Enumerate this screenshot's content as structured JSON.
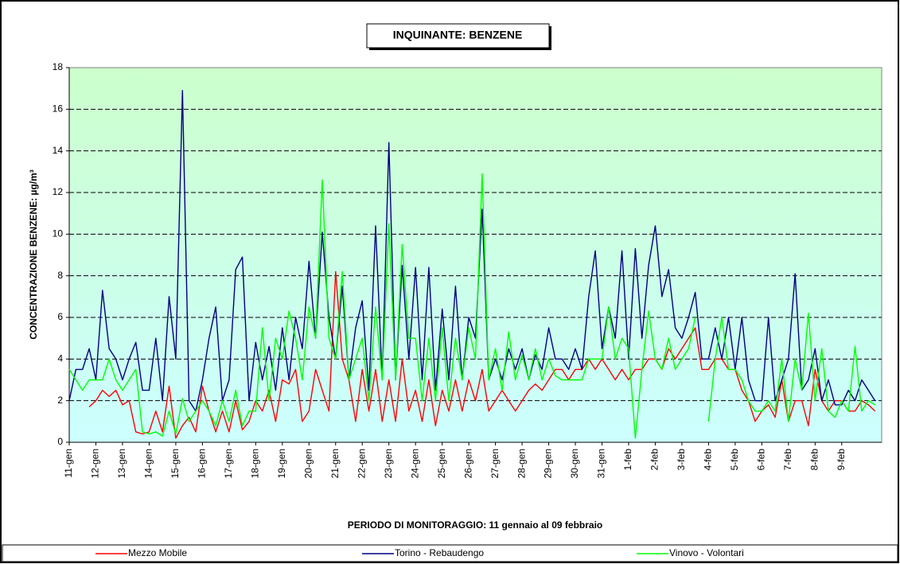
{
  "chart_data": {
    "type": "line",
    "title": "INQUINANTE: BENZENE",
    "y_label": "CONCENTRAZIONE BENZENE:  µg/m³",
    "x_label": "PERIODO DI MONITORAGGIO: 11 gennaio al 09 febbraio",
    "ylim": [
      0,
      18
    ],
    "yticks": [
      0,
      2,
      4,
      6,
      8,
      10,
      12,
      14,
      16,
      18
    ],
    "grid": true,
    "categories": [
      "11-gen",
      null,
      null,
      null,
      "12-gen",
      null,
      null,
      null,
      "13-gen",
      null,
      null,
      null,
      "14-gen",
      null,
      null,
      null,
      "15-gen",
      null,
      null,
      null,
      "16-gen",
      null,
      null,
      null,
      "17-gen",
      null,
      null,
      null,
      "18-gen",
      null,
      null,
      null,
      "19-gen",
      null,
      null,
      null,
      "20-gen",
      null,
      null,
      null,
      "21-gen",
      null,
      null,
      null,
      "22-gen",
      null,
      null,
      null,
      "23-gen",
      null,
      null,
      null,
      "24-gen",
      null,
      null,
      null,
      "25-gen",
      null,
      null,
      null,
      "26-gen",
      null,
      null,
      null,
      "27-gen",
      null,
      null,
      null,
      "28-gen",
      null,
      null,
      null,
      "29-gen",
      null,
      null,
      null,
      "30-gen",
      null,
      null,
      null,
      "31-gen",
      null,
      null,
      null,
      "1-feb",
      null,
      null,
      null,
      "2-feb",
      null,
      null,
      null,
      "3-feb",
      null,
      null,
      null,
      "4-feb",
      null,
      null,
      null,
      "5-feb",
      null,
      null,
      null,
      "6-feb",
      null,
      null,
      null,
      "7-feb",
      null,
      null,
      null,
      "8-feb",
      null,
      null,
      null,
      "9-feb",
      null,
      null,
      null,
      null,
      null
    ],
    "series": [
      {
        "name": "Mezzo Mobile",
        "color": "#ff0000",
        "values": [
          null,
          null,
          null,
          1.7,
          2,
          2.5,
          2.2,
          2.5,
          1.8,
          2,
          0.5,
          0.4,
          0.5,
          1.5,
          0.5,
          2.7,
          0.2,
          0.8,
          1.2,
          0.5,
          2.7,
          1.5,
          0.5,
          1.5,
          0.5,
          2,
          0.6,
          1,
          2,
          1.5,
          2.5,
          1,
          3,
          2.8,
          3.5,
          1,
          1.5,
          3.5,
          2.5,
          1.5,
          8.2,
          4,
          3,
          1,
          3.5,
          1.5,
          3.5,
          1,
          3,
          1,
          4,
          1.5,
          2.5,
          1,
          3,
          0.8,
          2.5,
          1.5,
          3,
          1.5,
          3,
          2,
          3.5,
          1.5,
          2,
          2.5,
          2,
          1.5,
          2,
          2.5,
          2.8,
          2.5,
          3,
          3.5,
          3.5,
          3,
          3.5,
          3.5,
          4,
          3.5,
          4,
          3.5,
          3,
          3.5,
          3,
          3.5,
          3.5,
          4,
          4,
          3.5,
          4.5,
          4,
          4.5,
          5,
          5.5,
          3.5,
          3.5,
          4,
          4,
          3.5,
          3.5,
          2.5,
          2,
          1,
          1.5,
          1.8,
          1.2,
          3,
          1,
          2,
          2,
          0.8,
          3.5,
          2,
          1.5,
          2,
          2,
          1.5,
          1.5,
          2,
          1.8,
          1.5
        ]
      },
      {
        "name": "Torino - Rebaudengo",
        "color": "#000080",
        "values": [
          2,
          3.5,
          3.5,
          4.5,
          3,
          7.3,
          4.5,
          4,
          3,
          4,
          4.8,
          2.5,
          2.5,
          5,
          2,
          7,
          4,
          16.9,
          2,
          1.5,
          3,
          5,
          6.5,
          2,
          3,
          8.3,
          8.9,
          2,
          4.8,
          3,
          4.6,
          2.5,
          5.5,
          3,
          6,
          4.5,
          8.7,
          5,
          10.1,
          6,
          4,
          7.5,
          3,
          5.5,
          6.8,
          2.5,
          10.4,
          3,
          14.4,
          3,
          8.5,
          4,
          8.4,
          3,
          8.4,
          2.5,
          6.4,
          3,
          7.5,
          3,
          6,
          5,
          11.2,
          3,
          4,
          3,
          4.5,
          3.5,
          4.5,
          3,
          4.2,
          3.5,
          5.5,
          4,
          4,
          3.5,
          4.5,
          3.5,
          7,
          9.2,
          4.5,
          6.5,
          5,
          9.2,
          4,
          9.3,
          5,
          8.5,
          10.4,
          7,
          8.3,
          5.5,
          5,
          6,
          7.2,
          4,
          4,
          5.5,
          4,
          6,
          3.5,
          6,
          3,
          2,
          2,
          6,
          2,
          3,
          4,
          8.1,
          2.5,
          3,
          4.5,
          2,
          3,
          1.8,
          1.8,
          2.5,
          2,
          3,
          2.5,
          2
        ]
      },
      {
        "name": "Vinovo - Volontari",
        "color": "#00ff00",
        "values": [
          3.5,
          3,
          2.5,
          3,
          3,
          3,
          4,
          3,
          2.5,
          3,
          3.5,
          0.5,
          0.4,
          0.5,
          0.3,
          1.5,
          0.4,
          2.1,
          1,
          1.5,
          2,
          1.5,
          0.8,
          2,
          1,
          2.5,
          0.8,
          1.5,
          1.5,
          5.5,
          2,
          5,
          4,
          6.3,
          5,
          3,
          6.5,
          5,
          12.6,
          5,
          4,
          8.2,
          3,
          4,
          5,
          2,
          6.5,
          3,
          10.5,
          3,
          9.5,
          5,
          5,
          2,
          5,
          2,
          5.5,
          2,
          5,
          3,
          5.5,
          4,
          12.9,
          3,
          4.5,
          2.5,
          5.3,
          3,
          4.2,
          3,
          4.5,
          3,
          4,
          3.2,
          3,
          3,
          3,
          3,
          4,
          4,
          4,
          6.5,
          4,
          5,
          4.5,
          0.2,
          3.5,
          6.3,
          4,
          3.5,
          5,
          3.5,
          4,
          4.5,
          6,
          null,
          1,
          4,
          6,
          3.5,
          3.5,
          3,
          2,
          1.5,
          1.5,
          2,
          1.5,
          4,
          1,
          4,
          2.5,
          6.2,
          2,
          4.5,
          1.5,
          1.2,
          2,
          1.5,
          4.6,
          1.5,
          2,
          1.8
        ]
      }
    ]
  }
}
